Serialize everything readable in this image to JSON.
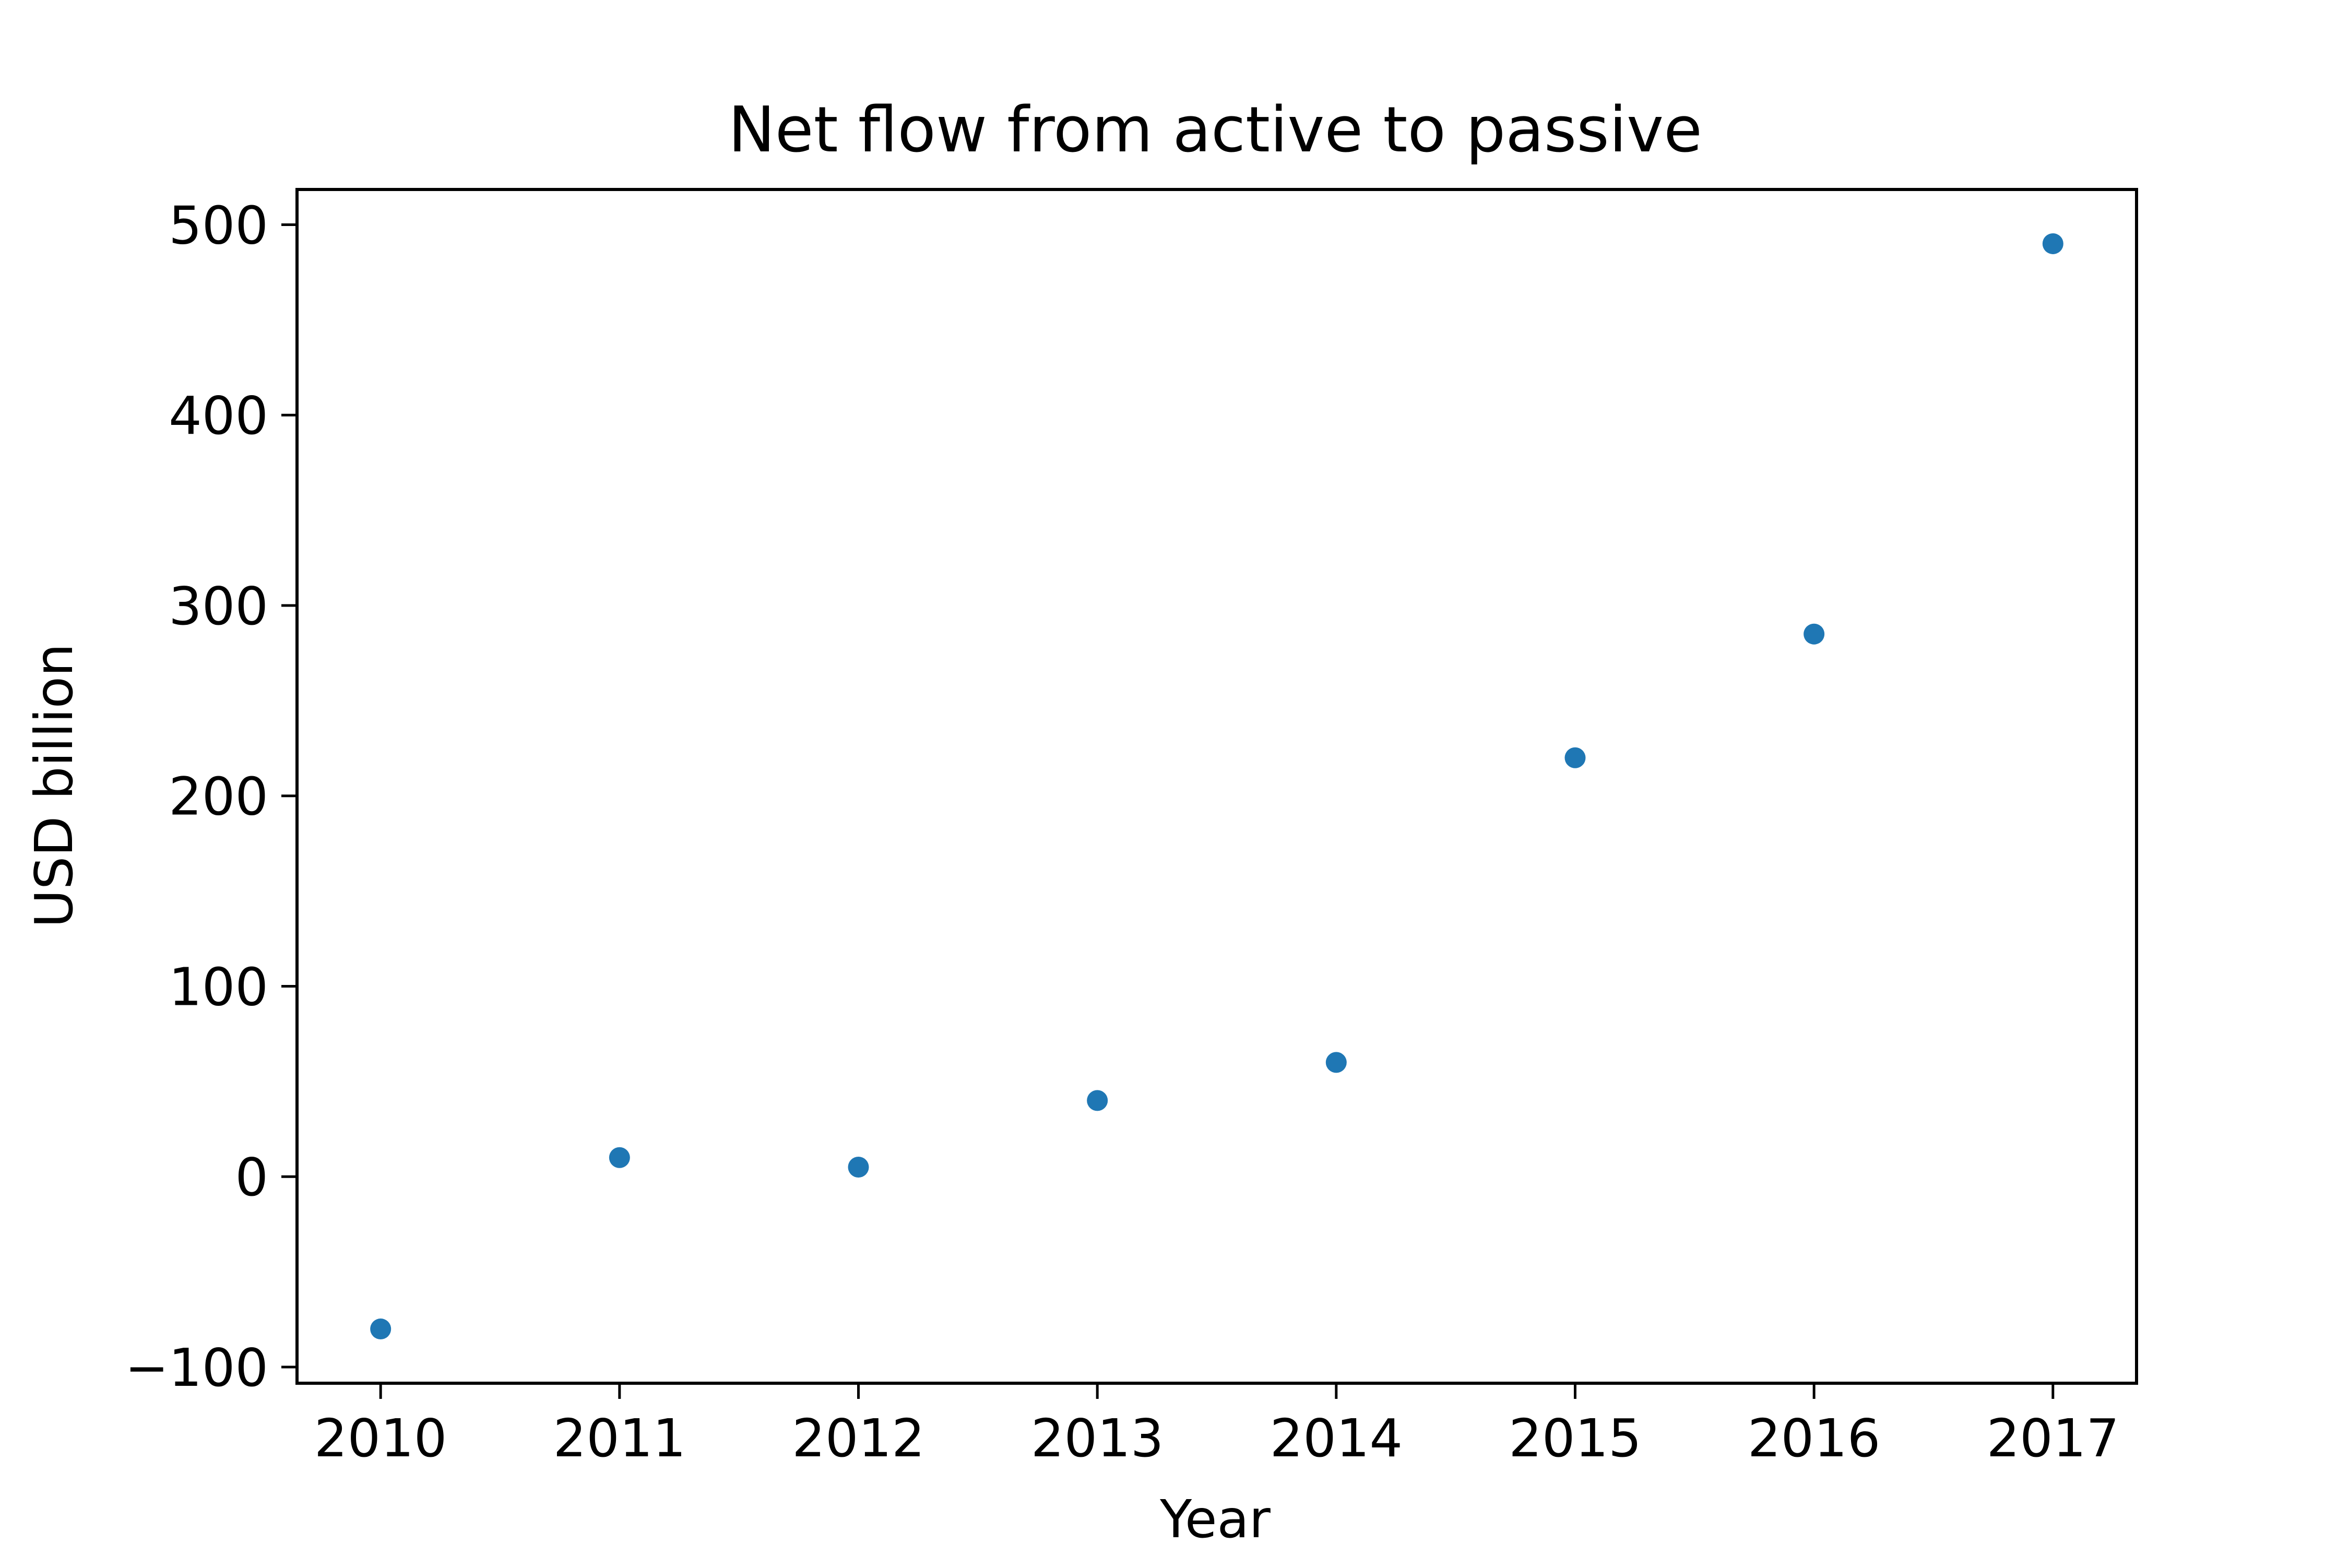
{
  "chart_data": {
    "type": "scatter",
    "title": "Net flow from active to passive",
    "xlabel": "Year",
    "ylabel": "USD billion",
    "x": [
      2010,
      2011,
      2012,
      2013,
      2014,
      2015,
      2016,
      2017
    ],
    "y": [
      -80,
      10,
      5,
      40,
      60,
      220,
      285,
      490
    ],
    "xticks": [
      "2010",
      "2011",
      "2012",
      "2013",
      "2014",
      "2015",
      "2016",
      "2017"
    ],
    "yticks": [
      "−100",
      "0",
      "100",
      "200",
      "300",
      "400",
      "500"
    ],
    "ytick_values": [
      -100,
      0,
      100,
      200,
      300,
      400,
      500
    ],
    "xlim": [
      2009.65,
      2017.35
    ],
    "ylim": [
      -108.5,
      518.5
    ],
    "grid": false,
    "marker_color": "#1f77b4"
  }
}
